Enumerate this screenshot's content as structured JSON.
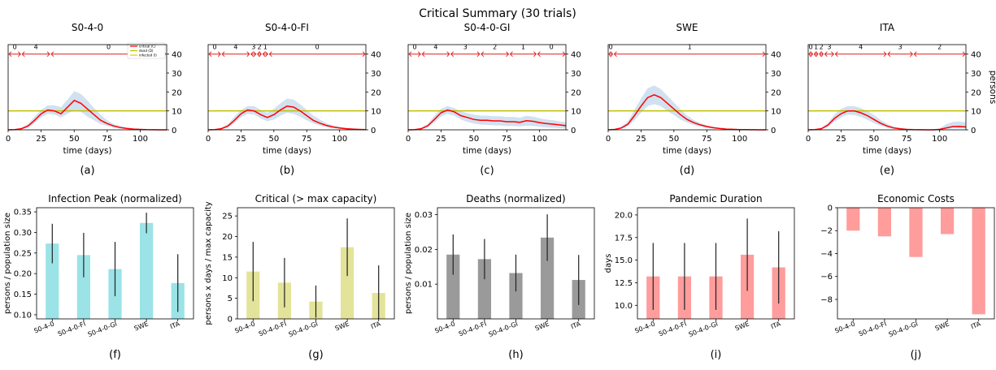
{
  "figure": {
    "suptitle": "Critical Summary (30 trials)",
    "top_axis_ticks": [
      0,
      10,
      20,
      30,
      40
    ],
    "top_x_ticks": [
      0,
      25,
      50,
      75,
      100
    ],
    "top_xlabel": "time (days)",
    "top_ylabel_last": "persons",
    "legend": [
      "critical (C)",
      "dead (D)",
      "infected (I)"
    ],
    "colors": {
      "critical": "#ff0000",
      "capacity": "#bfbf00",
      "band": "#c6d9ec",
      "phase": "#dd2222",
      "bar_infection": "#9be3e6",
      "bar_critical": "#e3e39a",
      "bar_deaths": "#9a9a9a",
      "bar_duration": "#ff9c9c",
      "bar_cost": "#ff9c9c"
    }
  },
  "chart_data": [
    {
      "type": "line",
      "panel_label": "(a)",
      "title": "S0-4-0",
      "xlabel": "time (days)",
      "xlim": [
        0,
        120
      ],
      "ylim": [
        0,
        45
      ],
      "capacity": 10,
      "x": [
        0,
        5,
        10,
        15,
        20,
        25,
        30,
        35,
        40,
        45,
        50,
        55,
        60,
        65,
        70,
        75,
        80,
        85,
        90,
        95,
        100,
        105,
        110,
        115,
        120
      ],
      "y": [
        0,
        0.1,
        0.6,
        2,
        5,
        8.5,
        10.5,
        10,
        8.5,
        12,
        15.5,
        14,
        11,
        8,
        5,
        3.3,
        2,
        1.2,
        0.7,
        0.4,
        0.2,
        0.1,
        0.05,
        0,
        0
      ],
      "band_low": [
        0,
        0,
        0.3,
        1.2,
        3.5,
        6.5,
        8.5,
        8,
        6.5,
        8.5,
        10.5,
        9.5,
        7,
        5,
        3,
        2,
        1.2,
        0.6,
        0.3,
        0.1,
        0.05,
        0,
        0,
        0,
        0
      ],
      "band_high": [
        0,
        0.2,
        1,
        3,
        7,
        10.5,
        13,
        13,
        12,
        16,
        20.5,
        19,
        15.5,
        11.5,
        8,
        5,
        3,
        2,
        1.2,
        0.7,
        0.4,
        0.2,
        0.1,
        0.05,
        0
      ],
      "phases": [
        {
          "label": "0",
          "start": 0,
          "end": 10
        },
        {
          "label": "4",
          "start": 10,
          "end": 32
        },
        {
          "label": "0",
          "start": 32,
          "end": 120
        }
      ]
    },
    {
      "type": "line",
      "panel_label": "(b)",
      "title": "S0-4-0-FI",
      "xlabel": "time (days)",
      "xlim": [
        0,
        120
      ],
      "ylim": [
        0,
        45
      ],
      "capacity": 10,
      "x": [
        0,
        5,
        10,
        15,
        20,
        25,
        30,
        35,
        40,
        45,
        50,
        55,
        60,
        65,
        70,
        75,
        80,
        85,
        90,
        95,
        100,
        105,
        110,
        115,
        120
      ],
      "y": [
        0,
        0.1,
        0.6,
        2,
        5,
        8.5,
        10.5,
        10,
        8,
        6.5,
        8,
        10.5,
        12.5,
        12,
        10,
        7.5,
        5,
        3.5,
        2.3,
        1.5,
        1,
        0.6,
        0.4,
        0.2,
        0.1
      ],
      "band_low": [
        0,
        0,
        0.3,
        1.2,
        3.5,
        6.5,
        8.5,
        8,
        6,
        4.5,
        5.5,
        7.5,
        9,
        8.5,
        7,
        5,
        3.3,
        2.2,
        1.4,
        0.9,
        0.5,
        0.3,
        0.2,
        0.1,
        0
      ],
      "band_high": [
        0,
        0.2,
        1,
        3,
        7,
        10.5,
        12.5,
        12.5,
        10.5,
        9,
        11,
        14,
        16.5,
        16,
        13.5,
        10.5,
        7.5,
        5.5,
        3.5,
        2.3,
        1.6,
        1,
        0.7,
        0.4,
        0.2
      ],
      "phases": [
        {
          "label": "0",
          "start": 0,
          "end": 10
        },
        {
          "label": "4",
          "start": 10,
          "end": 32
        },
        {
          "label": "3",
          "start": 32,
          "end": 37
        },
        {
          "label": "2",
          "start": 37,
          "end": 41
        },
        {
          "label": "1",
          "start": 41,
          "end": 46
        },
        {
          "label": "0",
          "start": 46,
          "end": 120
        }
      ]
    },
    {
      "type": "line",
      "panel_label": "(c)",
      "title": "S0-4-0-GI",
      "xlabel": "time (days)",
      "xlim": [
        0,
        120
      ],
      "ylim": [
        0,
        45
      ],
      "capacity": 10,
      "x": [
        0,
        5,
        10,
        15,
        20,
        25,
        30,
        35,
        40,
        45,
        50,
        55,
        60,
        65,
        70,
        75,
        80,
        85,
        90,
        95,
        100,
        105,
        110,
        115,
        120
      ],
      "y": [
        0,
        0.1,
        0.6,
        2.2,
        5.5,
        9,
        10.5,
        9.5,
        7.5,
        6.5,
        5.5,
        5,
        5,
        4.7,
        4.7,
        4.3,
        4.3,
        4,
        4.8,
        4.5,
        3.8,
        3.3,
        3,
        2.6,
        2.2
      ],
      "band_low": [
        0,
        0,
        0.3,
        1.4,
        3.8,
        7,
        8.5,
        7.5,
        5.5,
        4.2,
        3.3,
        2.8,
        2.6,
        2.4,
        2.3,
        2,
        2,
        1.8,
        2.2,
        2,
        1.6,
        1.3,
        1.1,
        0.9,
        0.7
      ],
      "band_high": [
        0,
        0.2,
        1,
        3.2,
        7.5,
        11,
        12.5,
        11.5,
        9.8,
        8.8,
        8,
        7.5,
        7.5,
        7.2,
        7.2,
        6.8,
        6.8,
        6.4,
        7.4,
        7,
        6.1,
        5.5,
        5.1,
        4.5,
        4
      ],
      "phases": [
        {
          "label": "0",
          "start": 0,
          "end": 10
        },
        {
          "label": "4",
          "start": 10,
          "end": 32
        },
        {
          "label": "3",
          "start": 32,
          "end": 55
        },
        {
          "label": "2",
          "start": 55,
          "end": 77
        },
        {
          "label": "1",
          "start": 77,
          "end": 98
        },
        {
          "label": "0",
          "start": 98,
          "end": 120
        }
      ]
    },
    {
      "type": "line",
      "panel_label": "(d)",
      "title": "SWE",
      "xlabel": "time (days)",
      "xlim": [
        0,
        120
      ],
      "ylim": [
        0,
        45
      ],
      "capacity": 10,
      "x": [
        0,
        5,
        10,
        15,
        20,
        25,
        30,
        35,
        40,
        45,
        50,
        55,
        60,
        65,
        70,
        75,
        80,
        85,
        90,
        95,
        100,
        105,
        110,
        115,
        120
      ],
      "y": [
        0,
        0.2,
        1,
        3,
        7.5,
        12.5,
        17,
        18.5,
        17,
        14,
        11,
        8,
        5.5,
        3.8,
        2.6,
        1.7,
        1.1,
        0.7,
        0.4,
        0.25,
        0.15,
        0.1,
        0.05,
        0,
        0
      ],
      "band_low": [
        0,
        0.1,
        0.5,
        1.8,
        5,
        9,
        12.5,
        13.5,
        12.5,
        10,
        7.8,
        5.5,
        3.8,
        2.5,
        1.7,
        1.1,
        0.6,
        0.4,
        0.2,
        0.1,
        0.05,
        0,
        0,
        0,
        0
      ],
      "band_high": [
        0,
        0.4,
        1.6,
        4.5,
        10.5,
        16.5,
        22,
        23.5,
        21.5,
        18,
        14.5,
        10.8,
        7.6,
        5.2,
        3.6,
        2.4,
        1.6,
        1,
        0.6,
        0.4,
        0.25,
        0.15,
        0.1,
        0.05,
        0
      ],
      "phases": [
        {
          "label": "0",
          "start": 0,
          "end": 4
        },
        {
          "label": "1",
          "start": 4,
          "end": 120
        }
      ]
    },
    {
      "type": "line",
      "panel_label": "(e)",
      "title": "ITA",
      "xlabel": "time (days)",
      "xlim": [
        0,
        120
      ],
      "ylim": [
        0,
        45
      ],
      "capacity": 10,
      "x": [
        0,
        5,
        10,
        15,
        20,
        25,
        30,
        35,
        40,
        45,
        50,
        55,
        60,
        65,
        70,
        75,
        80,
        85,
        90,
        95,
        100,
        105,
        110,
        115,
        120
      ],
      "y": [
        0,
        0.1,
        0.6,
        2.5,
        6,
        8.5,
        10,
        10,
        9,
        7.5,
        5.5,
        3.5,
        2,
        1,
        0.5,
        0.2,
        0.1,
        0.05,
        0,
        0,
        0.2,
        1,
        1.7,
        1.8,
        1.5
      ],
      "band_low": [
        0,
        0,
        0.3,
        1.5,
        4.2,
        6.5,
        8,
        7.8,
        6.8,
        5.3,
        3.6,
        2.1,
        1.1,
        0.5,
        0.2,
        0.1,
        0,
        0,
        0,
        0,
        0,
        0.3,
        0.7,
        0.8,
        0.6
      ],
      "band_high": [
        0,
        0.2,
        1,
        3.6,
        8,
        11,
        12.5,
        12.5,
        11.5,
        10,
        7.8,
        5.3,
        3.2,
        1.8,
        1,
        0.5,
        0.3,
        0.1,
        0.05,
        0.1,
        0.8,
        3,
        4.2,
        4.4,
        4
      ],
      "phases": [
        {
          "label": "0",
          "start": 0,
          "end": 4
        },
        {
          "label": "1",
          "start": 4,
          "end": 8
        },
        {
          "label": "2",
          "start": 8,
          "end": 12
        },
        {
          "label": "3",
          "start": 12,
          "end": 20
        },
        {
          "label": "4",
          "start": 20,
          "end": 60
        },
        {
          "label": "3",
          "start": 60,
          "end": 80
        },
        {
          "label": "2",
          "start": 80,
          "end": 120
        }
      ]
    },
    {
      "type": "bar",
      "panel_label": "(f)",
      "title": "Infection Peak (normalized)",
      "ylabel": "persons / population size",
      "ylim": [
        0.09,
        0.36
      ],
      "yticks": [
        0.1,
        0.15,
        0.2,
        0.25,
        0.3,
        0.35
      ],
      "ytick_decimals": 2,
      "categories": [
        "S0-4-0",
        "S0-4-0-FI",
        "S0-4-0-GI",
        "SWE",
        "ITA"
      ],
      "values": [
        0.273,
        0.245,
        0.211,
        0.323,
        0.177
      ],
      "err": [
        0.048,
        0.054,
        0.066,
        0.025,
        0.07
      ],
      "color_key": "bar_infection"
    },
    {
      "type": "bar",
      "panel_label": "(g)",
      "title": "Critical (> max capacity)",
      "ylabel": "persons x days / max capacity",
      "ylim": [
        0,
        27
      ],
      "yticks": [
        0,
        5,
        10,
        15,
        20,
        25
      ],
      "ytick_decimals": 0,
      "categories": [
        "S0-4-0",
        "S0-4-0-FI",
        "S0-4-0-GI",
        "SWE",
        "ITA"
      ],
      "values": [
        11.5,
        8.8,
        4.2,
        17.4,
        6.3
      ],
      "err": [
        7.2,
        6,
        3.9,
        7,
        6.7
      ],
      "color_key": "bar_critical"
    },
    {
      "type": "bar",
      "panel_label": "(h)",
      "title": "Deaths (normalized)",
      "ylabel": "persons / population size",
      "ylim": [
        0,
        0.032
      ],
      "yticks": [
        0.01,
        0.02,
        0.03
      ],
      "ytick_decimals": 2,
      "categories": [
        "S0-4-0",
        "S0-4-0-FI",
        "S0-4-0-GI",
        "SWE",
        "ITA"
      ],
      "values": [
        0.0185,
        0.0172,
        0.0132,
        0.0234,
        0.0112
      ],
      "err": [
        0.0058,
        0.0058,
        0.0053,
        0.0067,
        0.0072
      ],
      "color_key": "bar_deaths"
    },
    {
      "type": "bar",
      "panel_label": "(i)",
      "title": "Pandemic Duration",
      "ylabel": "days",
      "ylim": [
        8.5,
        20.8
      ],
      "yticks": [
        10.0,
        12.5,
        15.0,
        17.5,
        20.0
      ],
      "ytick_decimals": 1,
      "categories": [
        "S0-4-0",
        "S0-4-0-FI",
        "S0-4-0-GI",
        "SWE",
        "ITA"
      ],
      "values": [
        13.2,
        13.2,
        13.2,
        15.6,
        14.2
      ],
      "err": [
        3.7,
        3.7,
        3.7,
        4,
        4
      ],
      "color_key": "bar_duration"
    },
    {
      "type": "bar",
      "panel_label": "(j)",
      "title": "Economic Costs",
      "ylabel": "",
      "ylim": [
        -9.7,
        0
      ],
      "yticks": [
        -8,
        -6,
        -4,
        -2,
        0
      ],
      "ytick_decimals": 0,
      "categories": [
        "S0-4-0",
        "S0-4-0-FI",
        "S0-4-0-GI",
        "SWE",
        "ITA"
      ],
      "values": [
        -2.0,
        -2.5,
        -4.3,
        -2.3,
        -9.3
      ],
      "err": [
        0,
        0,
        0,
        0,
        0
      ],
      "color_key": "bar_cost"
    }
  ]
}
